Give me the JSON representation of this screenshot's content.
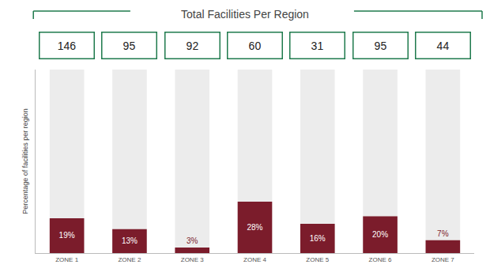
{
  "chart_data": {
    "type": "bar",
    "title": "Total Facilities Per Region",
    "y_label": "Percentage of facilities per region",
    "categories": [
      "ZONE 1",
      "ZONE 2",
      "ZONE 3",
      "ZONE 4",
      "ZONE 5",
      "ZONE 6",
      "ZONE 7"
    ],
    "values": [
      19,
      13,
      3,
      28,
      16,
      20,
      7
    ],
    "value_labels": [
      "19%",
      "13%",
      "3%",
      "28%",
      "16%",
      "20%",
      "7%"
    ],
    "totals": [
      146,
      95,
      92,
      60,
      31,
      95,
      44
    ],
    "color": "#7b1c2b",
    "ylim": [
      0,
      100
    ],
    "data_labels": true,
    "tick_labels": "x",
    "grid": false
  }
}
